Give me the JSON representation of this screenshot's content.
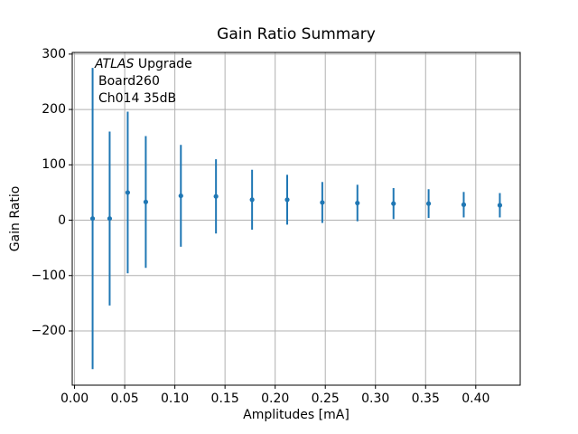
{
  "figure": {
    "background": "#ffffff",
    "text_color": "#000000"
  },
  "chart_data": {
    "type": "scatter",
    "subtype": "errorbar",
    "title": "Gain Ratio Summary",
    "xlabel": "Amplitudes [mA]",
    "ylabel": "Gain Ratio",
    "annotation": {
      "line1_italic": "ATLAS",
      "line1_rest": " Upgrade",
      "line2": "Board260",
      "line3": "Ch014 35dB"
    },
    "grid": true,
    "legend": "none",
    "series_color": "#1f77b4",
    "grid_color": "#b0b0b0",
    "spine_color": "#000000",
    "xlim": [
      -0.0023,
      0.4443
    ],
    "ylim": [
      -298,
      303
    ],
    "x_ticks": [
      {
        "v": 0.0,
        "label": "0.00"
      },
      {
        "v": 0.05,
        "label": "0.05"
      },
      {
        "v": 0.1,
        "label": "0.10"
      },
      {
        "v": 0.15,
        "label": "0.15"
      },
      {
        "v": 0.2,
        "label": "0.20"
      },
      {
        "v": 0.25,
        "label": "0.25"
      },
      {
        "v": 0.3,
        "label": "0.30"
      },
      {
        "v": 0.35,
        "label": "0.35"
      },
      {
        "v": 0.4,
        "label": "0.40"
      }
    ],
    "y_ticks": [
      {
        "v": -200,
        "label": "−200"
      },
      {
        "v": -100,
        "label": "−100"
      },
      {
        "v": 0,
        "label": "0"
      },
      {
        "v": 100,
        "label": "100"
      },
      {
        "v": 200,
        "label": "200"
      },
      {
        "v": 300,
        "label": "300"
      }
    ],
    "points": [
      {
        "x": 0.018,
        "y": 3,
        "yerr": 272
      },
      {
        "x": 0.035,
        "y": 3,
        "yerr": 157
      },
      {
        "x": 0.053,
        "y": 50,
        "yerr": 146
      },
      {
        "x": 0.071,
        "y": 33,
        "yerr": 119
      },
      {
        "x": 0.106,
        "y": 44,
        "yerr": 92
      },
      {
        "x": 0.141,
        "y": 43,
        "yerr": 67
      },
      {
        "x": 0.177,
        "y": 37,
        "yerr": 54
      },
      {
        "x": 0.212,
        "y": 37,
        "yerr": 45
      },
      {
        "x": 0.247,
        "y": 32,
        "yerr": 37
      },
      {
        "x": 0.282,
        "y": 31,
        "yerr": 33
      },
      {
        "x": 0.318,
        "y": 30,
        "yerr": 28
      },
      {
        "x": 0.353,
        "y": 30,
        "yerr": 26
      },
      {
        "x": 0.388,
        "y": 28,
        "yerr": 23
      },
      {
        "x": 0.424,
        "y": 27,
        "yerr": 22
      }
    ]
  }
}
